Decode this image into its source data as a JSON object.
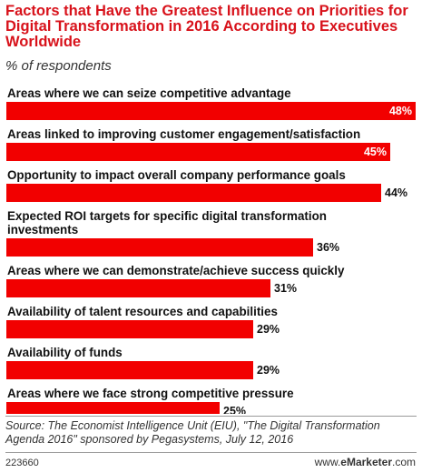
{
  "chart_data": {
    "type": "bar",
    "orientation": "horizontal",
    "title": "Factors that Have the Greatest Influence on Priorities for Digital Transformation in 2016 According to Executives Worldwide",
    "subtitle": "% of respondents",
    "categories": [
      "Areas where we can seize competitive advantage",
      "Areas linked to improving customer engagement/satisfaction",
      "Opportunity to impact overall company performance goals",
      "Expected ROI targets for specific digital transformation investments",
      "Areas where we can demonstrate/achieve success quickly",
      "Availability of talent resources and capabilities",
      "Availability of funds",
      "Areas where we face strong competitive pressure"
    ],
    "category_lines": [
      [
        "Areas where we can seize competitive advantage"
      ],
      [
        "Areas linked to improving customer engagement/satisfaction"
      ],
      [
        "Opportunity to impact overall company performance goals"
      ],
      [
        "Expected ROI targets for specific digital transformation",
        "investments"
      ],
      [
        "Areas where we can demonstrate/achieve success quickly"
      ],
      [
        "Availability of talent resources and capabilities"
      ],
      [
        "Availability of funds"
      ],
      [
        "Areas where we face strong competitive pressure"
      ]
    ],
    "values": [
      48,
      45,
      44,
      36,
      31,
      29,
      29,
      25
    ],
    "value_labels": [
      "48%",
      "45%",
      "44%",
      "36%",
      "31%",
      "29%",
      "29%",
      "25%"
    ],
    "xlim": [
      0,
      48
    ],
    "grid": false,
    "legend": "none",
    "bar_color": "#f20000"
  },
  "footer": {
    "source": "Source: The Economist Intelligence Unit (EIU), \"The Digital Transformation Agenda 2016\" sponsored by Pegasystems, July 12, 2016",
    "chart_id": "223660",
    "brand_prefix": "www.",
    "brand_name": "eMarketer",
    "brand_suffix": ".com"
  }
}
